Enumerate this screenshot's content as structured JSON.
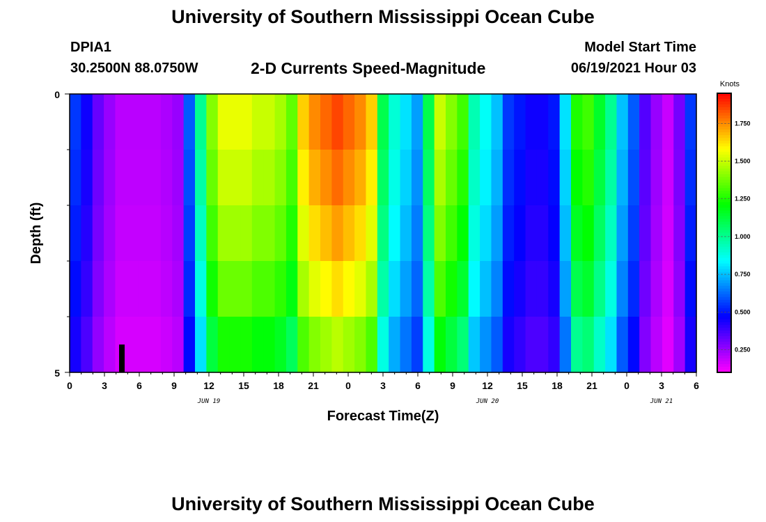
{
  "header": {
    "title_top": "University of Southern Mississippi Ocean Cube",
    "station_id": "DPIA1",
    "station_coords": "30.2500N  88.0750W",
    "chart_title": "2-D Currents Speed-Magnitude",
    "model_start_label": "Model Start Time",
    "model_start_value": "06/19/2021 Hour 03",
    "title_bottom": "University of Southern Mississippi Ocean Cube"
  },
  "chart_data": {
    "type": "heatmap",
    "title": "2-D Currents Speed-Magnitude",
    "xlabel": "Forecast Time(Z)",
    "ylabel": "Depth (ft)",
    "units_label": "Knots",
    "x_tick_labels": [
      "0",
      "3",
      "6",
      "9",
      "12",
      "15",
      "18",
      "21",
      "0",
      "3",
      "6",
      "9",
      "12",
      "15",
      "18",
      "21",
      "0",
      "3",
      "6"
    ],
    "x_range_hours": [
      0,
      54
    ],
    "date_labels": [
      {
        "text": "JUN 19",
        "hour": 12
      },
      {
        "text": "JUN 20",
        "hour": 36
      },
      {
        "text": "JUN 21",
        "hour": 51
      }
    ],
    "y_tick_labels": [
      "0",
      "5"
    ],
    "y_range_ft": [
      0,
      5
    ],
    "depth_layers": 5,
    "colorbar_ticks": [
      "0.250",
      "0.500",
      "0.750",
      "1.000",
      "1.250",
      "1.500",
      "1.750"
    ],
    "colorbar_range": [
      0.1,
      1.95
    ],
    "time_step_hours": 1,
    "surface_profile": [
      0.55,
      0.45,
      0.32,
      0.25,
      0.2,
      0.2,
      0.2,
      0.2,
      0.22,
      0.25,
      0.6,
      1.0,
      1.4,
      1.55,
      1.55,
      1.55,
      1.5,
      1.5,
      1.45,
      1.35,
      1.65,
      1.75,
      1.8,
      1.85,
      1.8,
      1.75,
      1.65,
      1.1,
      0.9,
      0.8,
      0.7,
      1.1,
      1.5,
      1.4,
      1.3,
      0.95,
      0.85,
      0.75,
      0.55,
      0.5,
      0.45,
      0.45,
      0.5,
      0.8,
      1.25,
      1.3,
      1.15,
      1.0,
      0.75,
      0.6,
      0.35,
      0.25,
      0.18,
      0.3,
      0.55
    ],
    "depth_factors": [
      1.0,
      0.97,
      0.93,
      0.88,
      0.8
    ]
  }
}
